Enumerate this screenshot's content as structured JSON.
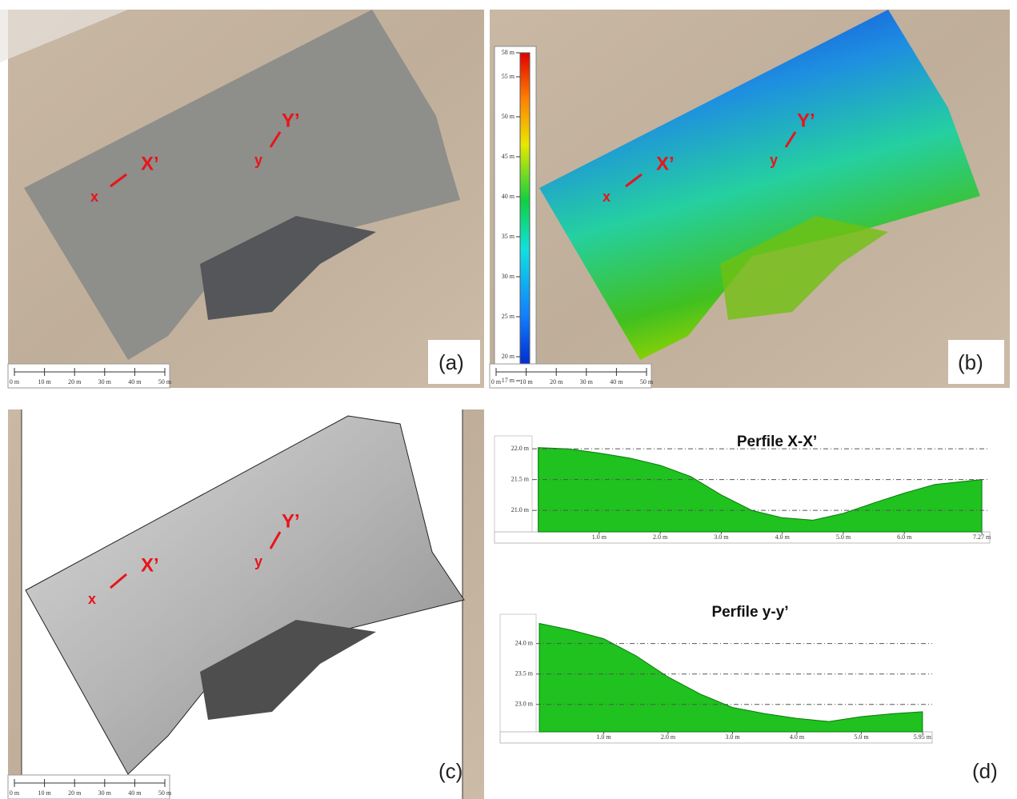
{
  "panels": {
    "labels": [
      "(a)",
      "(b)",
      "(c)",
      "(d)"
    ]
  },
  "annotations": {
    "x": "x",
    "x_end": "X’",
    "y": "y",
    "y_end": "Y’"
  },
  "scale_bar": {
    "labels": [
      "0 m",
      "10 m",
      "20 m",
      "30 m",
      "40 m",
      "50 m"
    ]
  },
  "color_scale": {
    "range": [
      17,
      58
    ],
    "ticks": [
      {
        "value": 17,
        "label": "17 m"
      },
      {
        "value": 20,
        "label": "20 m"
      },
      {
        "value": 25,
        "label": "25 m"
      },
      {
        "value": 30,
        "label": "30 m"
      },
      {
        "value": 35,
        "label": "35 m"
      },
      {
        "value": 40,
        "label": "40 m"
      },
      {
        "value": 45,
        "label": "45 m"
      },
      {
        "value": 50,
        "label": "50 m"
      },
      {
        "value": 55,
        "label": "55 m"
      },
      {
        "value": 58,
        "label": "58 m"
      }
    ]
  },
  "chart_data": [
    {
      "type": "area",
      "title": "Perfile X-X’",
      "color": "#1fc21f",
      "grid": true,
      "x": [
        0,
        0.5,
        1.0,
        1.5,
        2.0,
        2.5,
        3.0,
        3.5,
        4.0,
        4.5,
        5.0,
        5.5,
        6.0,
        6.5,
        7.27
      ],
      "values": [
        22.02,
        22.0,
        21.93,
        21.85,
        21.73,
        21.55,
        21.25,
        21.0,
        20.88,
        20.84,
        20.95,
        21.12,
        21.28,
        21.42,
        21.5
      ],
      "xlim": [
        -0.1,
        7.4
      ],
      "ylim": [
        20.65,
        22.08
      ],
      "xticks": [
        {
          "value": 1.0,
          "label": "1.0 m"
        },
        {
          "value": 2.0,
          "label": "2.0 m"
        },
        {
          "value": 3.0,
          "label": "3.0 m"
        },
        {
          "value": 4.0,
          "label": "4.0 m"
        },
        {
          "value": 5.0,
          "label": "5.0 m"
        },
        {
          "value": 6.0,
          "label": "6.0 m"
        },
        {
          "value": 7.27,
          "label": "7.27 m"
        }
      ],
      "yticks": [
        {
          "value": 21.0,
          "label": "21.0 m"
        },
        {
          "value": 21.5,
          "label": "21.5 m"
        },
        {
          "value": 22.0,
          "label": "22.0 m"
        }
      ]
    },
    {
      "type": "area",
      "title": "Perfile y-y’",
      "color": "#1fc21f",
      "grid": true,
      "x": [
        0,
        0.5,
        1.0,
        1.5,
        2.0,
        2.5,
        3.0,
        3.5,
        4.0,
        4.5,
        5.0,
        5.5,
        5.95
      ],
      "values": [
        24.33,
        24.22,
        24.08,
        23.8,
        23.45,
        23.17,
        22.95,
        22.85,
        22.77,
        22.72,
        22.8,
        22.85,
        22.88
      ],
      "xlim": [
        -0.05,
        6.1
      ],
      "ylim": [
        22.55,
        24.35
      ],
      "xticks": [
        {
          "value": 1.0,
          "label": "1.0 m"
        },
        {
          "value": 2.0,
          "label": "2.0 m"
        },
        {
          "value": 3.0,
          "label": "3.0 m"
        },
        {
          "value": 4.0,
          "label": "4.0 m"
        },
        {
          "value": 5.0,
          "label": "5.0 m"
        },
        {
          "value": 5.95,
          "label": "5.95 m"
        }
      ],
      "yticks": [
        {
          "value": 23.0,
          "label": "23.0 m"
        },
        {
          "value": 23.5,
          "label": "23.5 m"
        },
        {
          "value": 24.0,
          "label": "24.0 m"
        }
      ]
    }
  ]
}
